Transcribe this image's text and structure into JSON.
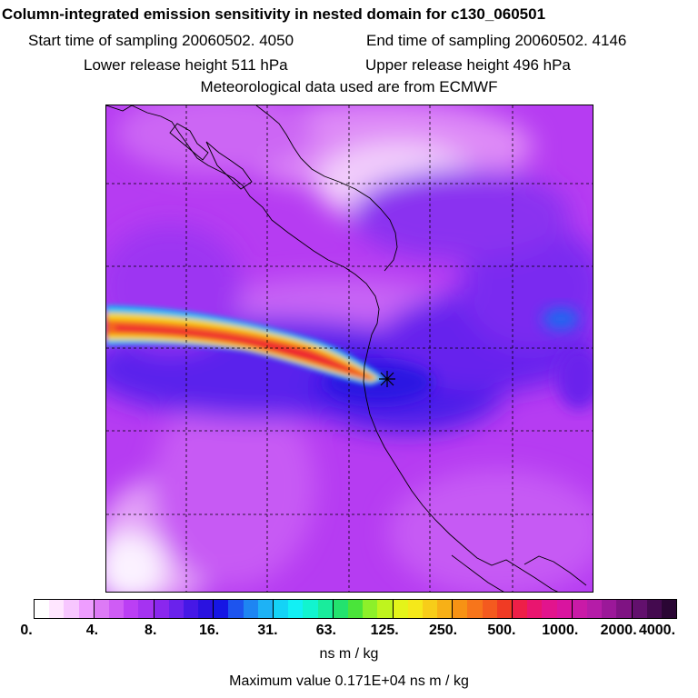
{
  "header": {
    "title": "Column-integrated emission sensitivity in nested domain for c130_060501",
    "start_time": "Start time of sampling 20060502.  4050",
    "end_time": "End time of sampling 20060502.  4146",
    "lower_height": "Lower release height  511 hPa",
    "upper_height": "Upper release height  496 hPa",
    "met_data": "Meteorological data used are from ECMWF"
  },
  "colorbar": {
    "ticks": [
      "0.",
      "4.",
      "8.",
      "16.",
      "31.",
      "63.",
      "125.",
      "250.",
      "500.",
      "1000.",
      "2000.",
      "4000."
    ],
    "colors": [
      "#ffffff",
      "#ffe6ff",
      "#f7c6ff",
      "#ee9dff",
      "#dd7af6",
      "#cf5cf5",
      "#bb3ff4",
      "#a533f1",
      "#8a27ee",
      "#6a22ec",
      "#4618e6",
      "#2a12e0",
      "#1616e4",
      "#1d54ee",
      "#1e85f2",
      "#1eb2f5",
      "#14d3f6",
      "#12f0f4",
      "#12f4cf",
      "#19ec9c",
      "#23e26e",
      "#4ae43a",
      "#8df02a",
      "#bff41e",
      "#e4f41a",
      "#f5e81a",
      "#f7cd19",
      "#f7b017",
      "#f79214",
      "#f7751b",
      "#f45a1f",
      "#f03b24",
      "#ee1f48",
      "#e9156f",
      "#e2148d",
      "#d9149f",
      "#c91aa7",
      "#b51ca8",
      "#9b1899",
      "#7f1383",
      "#62106d",
      "#440a4f",
      "#2a0634"
    ],
    "units": "ns m / kg",
    "maximum": "Maximum value  0.171E+04 ns m / kg"
  }
}
